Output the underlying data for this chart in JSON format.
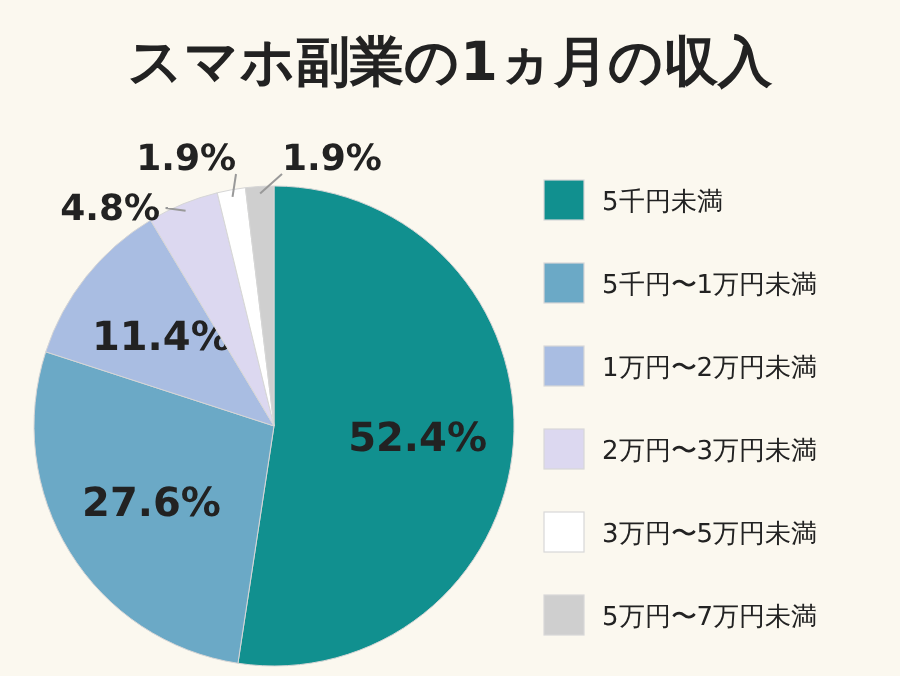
{
  "chart_data": {
    "type": "pie",
    "title": "スマホ副業の1ヵ月の収入",
    "categories": [
      "5千円未満",
      "5千円〜1万円未満",
      "1万円〜2万円未満",
      "2万円〜3万円未満",
      "3万円〜5万円未満",
      "5万円〜7万円未満"
    ],
    "values": [
      52.4,
      27.6,
      11.4,
      4.8,
      1.9,
      1.9
    ],
    "value_labels": [
      "52.4%",
      "27.6%",
      "11.4%",
      "4.8%",
      "1.9%",
      "1.9%"
    ],
    "colors": [
      "#11908f",
      "#6ba9c6",
      "#a9bde2",
      "#dcd8f0",
      "#ffffff",
      "#cfcfcf"
    ],
    "legend": "right"
  }
}
